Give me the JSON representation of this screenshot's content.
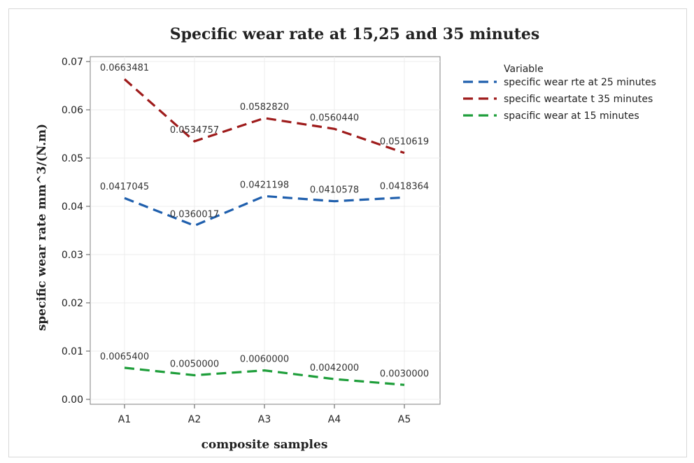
{
  "chart_data": {
    "type": "line",
    "title": "Specific wear rate at 15,25 and 35 minutes",
    "xlabel": "composite samples",
    "ylabel": "specific wear rate mm^3/(N.m)",
    "categories": [
      "A1",
      "A2",
      "A3",
      "A4",
      "A5"
    ],
    "ylim": [
      0,
      0.07
    ],
    "yticks": [
      "0.00",
      "0.01",
      "0.02",
      "0.03",
      "0.04",
      "0.05",
      "0.06",
      "0.07"
    ],
    "grid": true,
    "legend_title": "Variable",
    "legend_position": "right",
    "series": [
      {
        "name": "specific wear rte at 25 minutes",
        "color": "#1f5fad",
        "values": [
          0.0417045,
          0.0360017,
          0.0421198,
          0.0410578,
          0.0418364
        ],
        "labels": [
          "0.0417045",
          "0.0360017",
          "0.0421198",
          "0.0410578",
          "0.0418364"
        ]
      },
      {
        "name": "specific weartate t 35 minutes",
        "color": "#9e1b1b",
        "values": [
          0.0663481,
          0.0534757,
          0.058282,
          0.056044,
          0.0510619
        ],
        "labels": [
          "0.0663481",
          "0.0534757",
          "0.0582820",
          "0.0560440",
          "0.0510619"
        ]
      },
      {
        "name": "spacific wear at 15 minutes",
        "color": "#1e9e3a",
        "values": [
          0.00654,
          0.005,
          0.006,
          0.0042,
          0.003
        ],
        "labels": [
          "0.0065400",
          "0.0050000",
          "0.0060000",
          "0.0042000",
          "0.0030000"
        ]
      }
    ]
  }
}
